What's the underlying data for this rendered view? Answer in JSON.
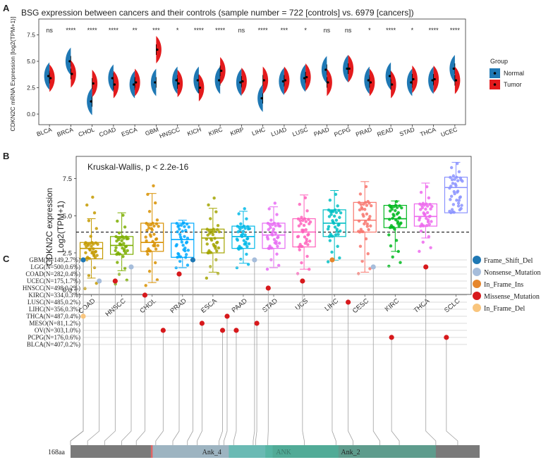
{
  "panels": {
    "a": {
      "letter": "A"
    },
    "b": {
      "letter": "B"
    },
    "c": {
      "letter": "C"
    }
  },
  "chart_data": [
    {
      "type": "violin",
      "title": "BSG expression between cancers and their controls (sample number = 722 [controls] vs. 6979 [cancers])",
      "ylabel": "CDKN2C mRNA Expression [log2(TPM+1)]",
      "yticks": [
        "0.0",
        "2.5",
        "5.0",
        "7.5"
      ],
      "ylim": [
        -1.0,
        9.0
      ],
      "legend": {
        "title": "Group",
        "items": [
          {
            "label": "Normal",
            "color": "#1F78B4"
          },
          {
            "label": "Tumor",
            "color": "#E31A1C"
          }
        ]
      },
      "categories": [
        "BLCA",
        "BRCA",
        "CHOL",
        "COAD",
        "ESCA",
        "GBM",
        "HNSCC",
        "KICH",
        "KIRC",
        "KIRP",
        "LIHC",
        "LUAD",
        "LUSC",
        "PAAD",
        "PCPG",
        "PRAD",
        "READ",
        "STAD",
        "THCA",
        "UCEC"
      ],
      "significance": [
        "ns",
        "****",
        "****",
        "****",
        "**",
        "***",
        "*",
        "****",
        "****",
        "ns",
        "****",
        "***",
        "*",
        "ns",
        "ns",
        "*",
        "****",
        "*",
        "****",
        "****"
      ],
      "normal_median": [
        3.6,
        5.0,
        1.2,
        3.4,
        2.8,
        3.0,
        3.2,
        3.2,
        3.2,
        3.0,
        1.5,
        3.1,
        3.4,
        4.2,
        4.3,
        3.2,
        3.6,
        3.0,
        3.2,
        4.3
      ],
      "tumor_median": [
        3.4,
        3.8,
        2.9,
        2.8,
        3.0,
        6.1,
        2.9,
        2.5,
        4.1,
        3.1,
        3.2,
        3.2,
        3.5,
        3.0,
        4.3,
        3.0,
        2.8,
        3.3,
        3.3,
        3.2
      ]
    },
    {
      "type": "box",
      "title": "Kruskal-Wallis, p < 2.2e-16",
      "ylabel": "CDKN2C expression",
      "ylabel2": "Log2(TPM+1)",
      "yticks": [
        "0.0",
        "2.5",
        "5.0",
        "7.5"
      ],
      "ylim": [
        -0.3,
        9.0
      ],
      "reference_line": 3.9,
      "categories": [
        "COAD",
        "HNSCC",
        "CHOL",
        "PRAD",
        "ESCA",
        "PAAD",
        "STAD",
        "UCS",
        "LIHC",
        "CESC",
        "KIRC",
        "THCA",
        "SCLC"
      ],
      "colors": [
        "#C49A00",
        "#7CAE00",
        "#D89000",
        "#00A9FF",
        "#A3A500",
        "#00B8E7",
        "#E76BF3",
        "#FF62BC",
        "#00BFC4",
        "#F8766D",
        "#00B81F",
        "#ED68ED",
        "#8B93FF"
      ],
      "q1": [
        2.1,
        2.4,
        2.6,
        2.2,
        2.5,
        2.8,
        2.8,
        2.9,
        3.6,
        3.9,
        4.2,
        4.3,
        5.2
      ],
      "median": [
        2.8,
        3.0,
        3.2,
        3.4,
        3.5,
        3.6,
        3.7,
        3.9,
        4.5,
        4.7,
        4.8,
        4.95,
        6.9
      ],
      "q3": [
        3.2,
        3.6,
        4.5,
        4.5,
        4.1,
        4.3,
        4.5,
        4.8,
        5.4,
        5.9,
        5.7,
        5.8,
        7.6
      ],
      "min": [
        0.8,
        1.3,
        0.5,
        1.5,
        1.2,
        1.8,
        1.5,
        1.4,
        2.0,
        1.2,
        2.6,
        3.5,
        5.2
      ],
      "max": [
        4.8,
        5.2,
        6.5,
        4.7,
        5.5,
        5.3,
        5.6,
        6.4,
        6.7,
        7.3,
        6.0,
        7.2,
        8.6
      ],
      "points_low": [
        0.1,
        0.4,
        0.3,
        1.5,
        0.8,
        1.5,
        1.4,
        1.1,
        1.9,
        1.1,
        1.6,
        2.6,
        5.3
      ],
      "points_high": [
        6.6,
        5.3,
        7.4,
        4.7,
        6.5,
        5.7,
        6.1,
        6.5,
        6.7,
        7.3,
        6.2,
        7.2,
        8.7
      ]
    },
    {
      "type": "lollipop",
      "protein_length_label": "168aa",
      "protein_length": 168,
      "domains": [
        {
          "name": "Ank_4",
          "start": 33,
          "end": 83
        },
        {
          "name": "ANK",
          "start": 65,
          "end": 110
        },
        {
          "name": "Ank_2",
          "start": 80,
          "end": 150
        }
      ],
      "rows": [
        "GBM(N=149,2.7%)",
        "LGG(N=500,0.6%)",
        "COAD(N=282,0.4%)",
        "UCEC(N=175,1.7%)",
        "HNSCC(N=498,0.2%)",
        "KIRC(N=334,0.3%)",
        "LUSC(N=485,0.2%)",
        "LIHC(N=356,0.3%)",
        "THCA(N=487,0.4%)",
        "MESO(N=81,1.2%)",
        "OV(N=303,1.0%)",
        "PCPG(N=176,0.6%)",
        "BLCA(N=407,0.2%)"
      ],
      "legend": [
        {
          "label": "Frame_Shift_Del",
          "color": "#1F78B4"
        },
        {
          "label": "Nonsense_Mutation",
          "color": "#A6BDDB"
        },
        {
          "label": "In_Frame_Ins",
          "color": "#E6862C"
        },
        {
          "label": "Missense_Mutation",
          "color": "#D7191C"
        },
        {
          "label": "In_Frame_Del",
          "color": "#F9C57D"
        }
      ],
      "mutations": [
        {
          "row": 0,
          "aa": 0,
          "type": 0
        },
        {
          "row": 0,
          "aa": 48,
          "type": 0
        },
        {
          "row": 0,
          "aa": 75,
          "type": 1
        },
        {
          "row": 0,
          "aa": 109,
          "type": 2
        },
        {
          "row": 1,
          "aa": 21,
          "type": 1
        },
        {
          "row": 1,
          "aa": 127,
          "type": 1
        },
        {
          "row": 1,
          "aa": 150,
          "type": 3
        },
        {
          "row": 2,
          "aa": 42,
          "type": 3
        },
        {
          "row": 3,
          "aa": 7,
          "type": 1
        },
        {
          "row": 3,
          "aa": 14,
          "type": 3
        },
        {
          "row": 3,
          "aa": 96,
          "type": 3
        },
        {
          "row": 4,
          "aa": 81,
          "type": 3
        },
        {
          "row": 5,
          "aa": 27,
          "type": 3
        },
        {
          "row": 6,
          "aa": 116,
          "type": 3
        },
        {
          "row": 8,
          "aa": 0,
          "type": 4
        },
        {
          "row": 8,
          "aa": 63,
          "type": 3
        },
        {
          "row": 9,
          "aa": 52,
          "type": 3
        },
        {
          "row": 9,
          "aa": 76,
          "type": 3
        },
        {
          "row": 10,
          "aa": 35,
          "type": 3
        },
        {
          "row": 10,
          "aa": 61,
          "type": 3
        },
        {
          "row": 10,
          "aa": 67,
          "type": 3
        },
        {
          "row": 11,
          "aa": 135,
          "type": 3
        },
        {
          "row": 11,
          "aa": 159,
          "type": 3
        }
      ]
    }
  ]
}
